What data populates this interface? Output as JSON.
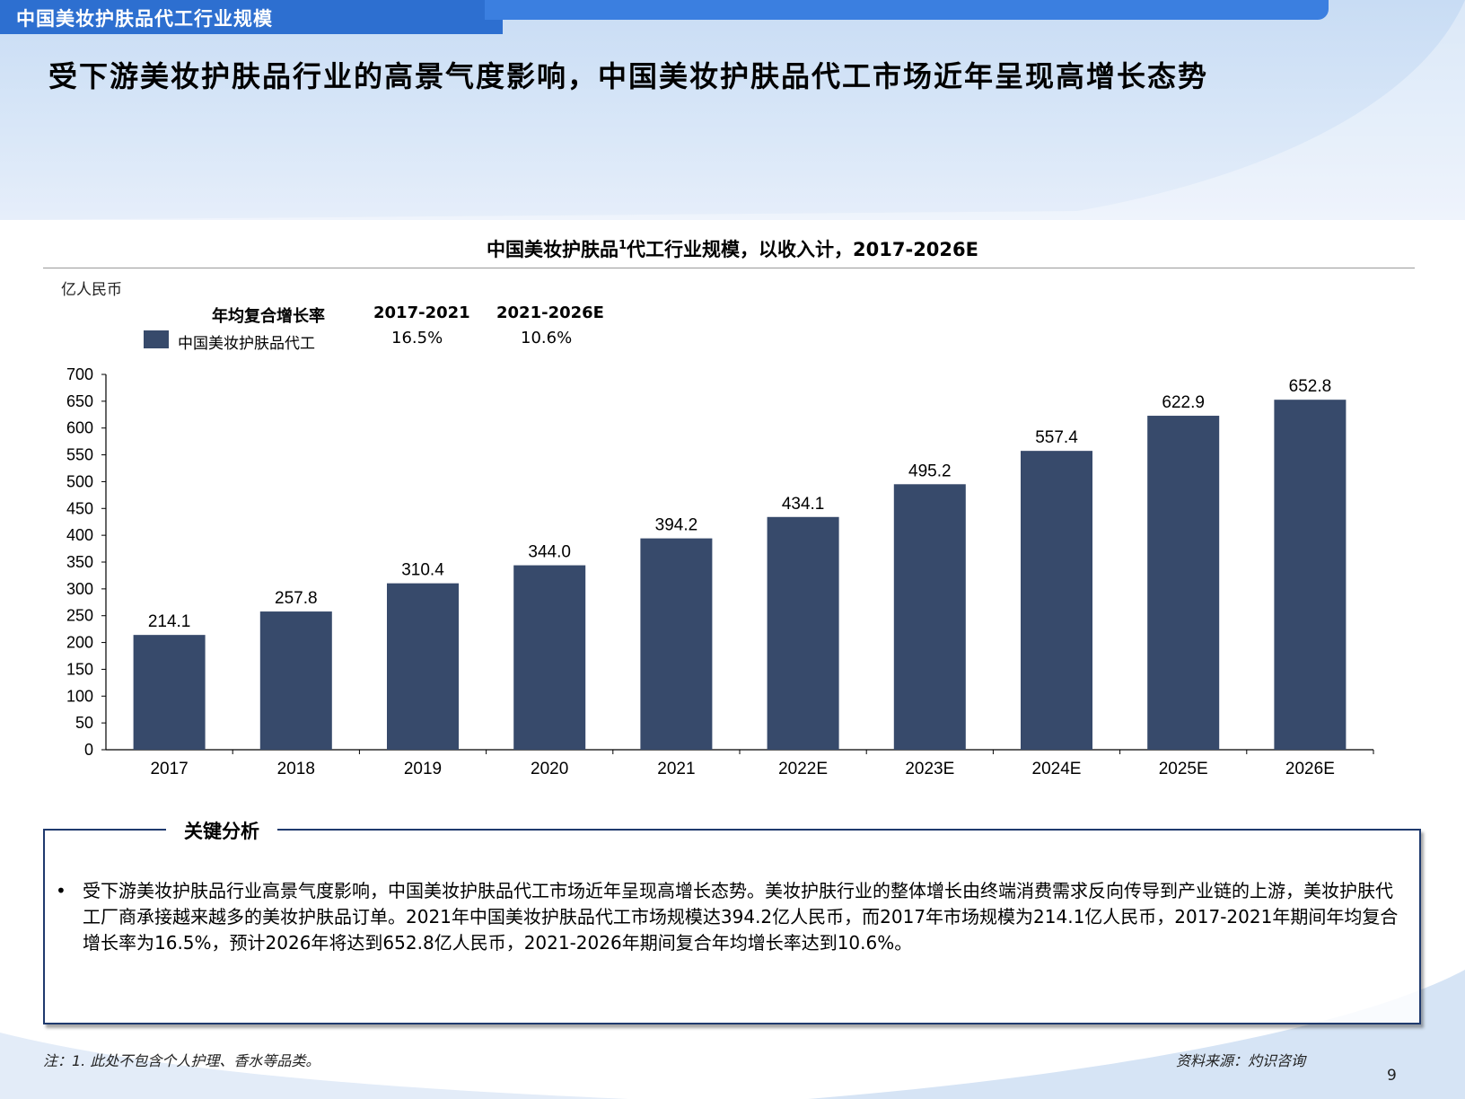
{
  "header": {
    "section_label": "中国美妆护肤品代工行业规模"
  },
  "headline": "受下游美妆护肤品行业的高景气度影响，中国美妆护肤品代工市场近年呈现高增长态势",
  "chart_title": {
    "text": "中国美妆护肤品",
    "sup": "1",
    "text2": "代工行业规模，以收入计，2017-2026E"
  },
  "unit_label": "亿人民币",
  "cagr": {
    "heading": "年均复合增长率",
    "periods": [
      "2017-2021",
      "2021-2026E"
    ],
    "values": [
      "16.5%",
      "10.6%"
    ]
  },
  "legend": {
    "label": "中国美妆护肤品代工",
    "color": "#374a6b"
  },
  "chart_data": {
    "type": "bar",
    "categories": [
      "2017",
      "2018",
      "2019",
      "2020",
      "2021",
      "2022E",
      "2023E",
      "2024E",
      "2025E",
      "2026E"
    ],
    "series": [
      {
        "name": "中国美妆护肤品代工",
        "values": [
          214.1,
          257.8,
          310.4,
          344.0,
          394.2,
          434.1,
          495.2,
          557.4,
          622.9,
          652.8
        ]
      }
    ],
    "data_labels": [
      "214.1",
      "257.8",
      "310.4",
      "344.0",
      "394.2",
      "434.1",
      "495.2",
      "557.4",
      "622.9",
      "652.8"
    ],
    "ylim": [
      0,
      700
    ],
    "yticks": [
      0,
      50,
      100,
      150,
      200,
      250,
      300,
      350,
      400,
      450,
      500,
      550,
      600,
      650,
      700
    ],
    "ylabel": "亿人民币",
    "grid": false,
    "bar_color": "#374a6b"
  },
  "key_analysis": {
    "title": "关键分析",
    "bullet": "•",
    "text": "受下游美妆护肤品行业高景气度影响，中国美妆护肤品代工市场近年呈现高增长态势。美妆护肤行业的整体增长由终端消费需求反向传导到产业链的上游，美妆护肤代工厂商承接越来越多的美妆护肤品订单。2021年中国美妆护肤品代工市场规模达394.2亿人民币，而2017年市场规模为214.1亿人民币，2017-2021年期间年均复合增长率为16.5%，预计2026年将达到652.8亿人民币，2021-2026年期间复合年均增长率达到10.6%。"
  },
  "footer": {
    "note": "注：1. 此处不包含个人护理、香水等品类。",
    "source": "资料来源：灼识咨询",
    "page_number": "9"
  }
}
